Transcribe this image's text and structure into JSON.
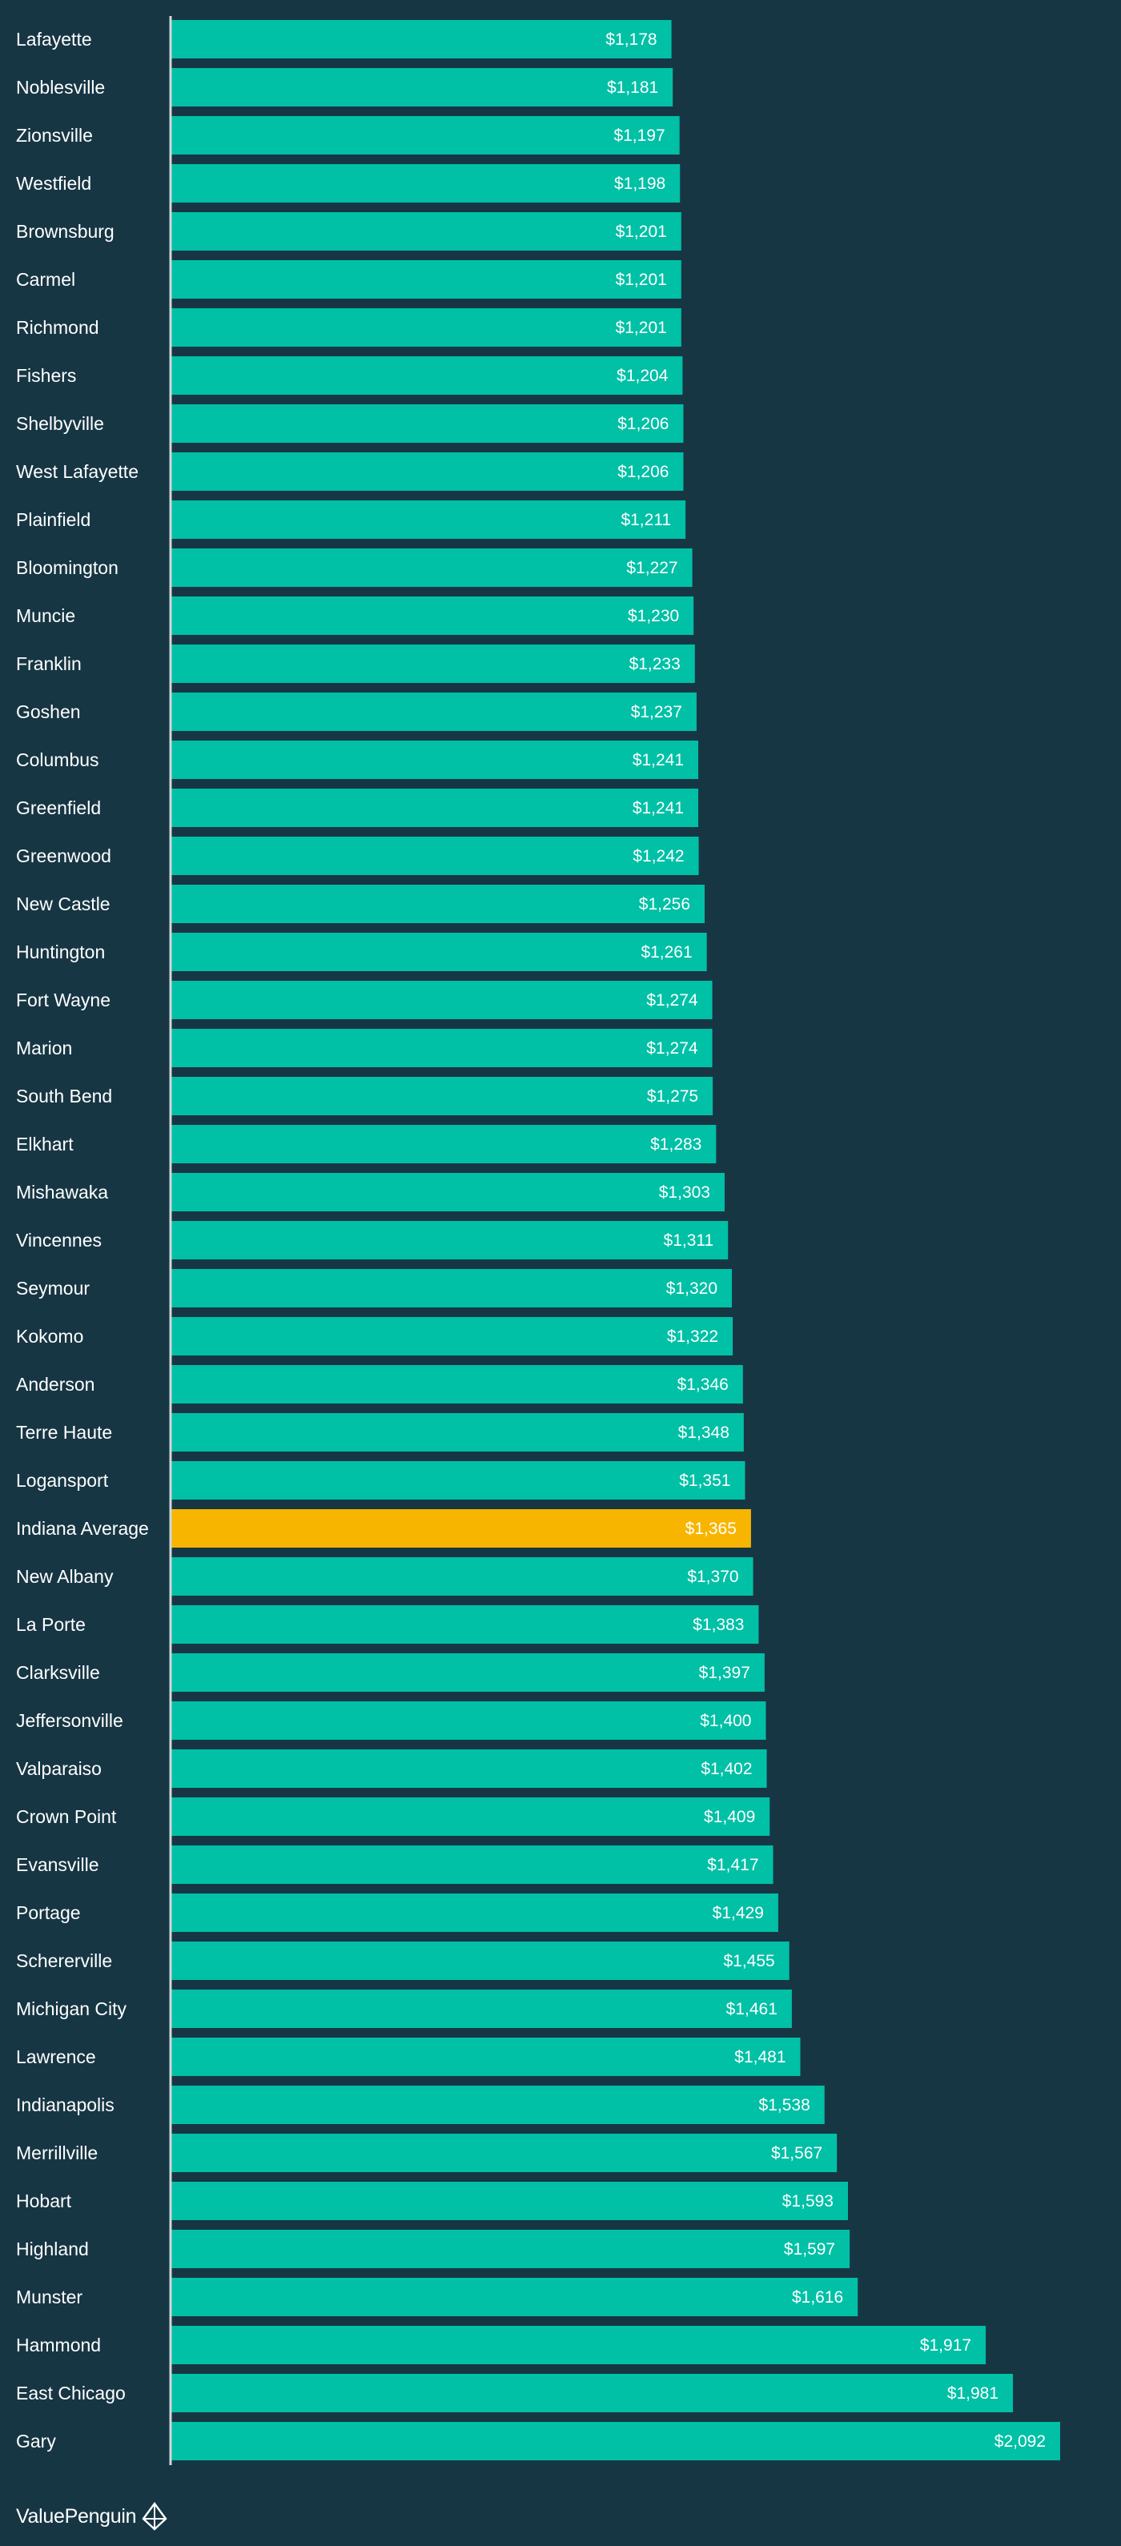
{
  "chart_data": {
    "type": "bar",
    "orientation": "horizontal",
    "categories": [
      "Lafayette",
      "Noblesville",
      "Zionsville",
      "Westfield",
      "Brownsburg",
      "Carmel",
      "Richmond",
      "Fishers",
      "Shelbyville",
      "West Lafayette",
      "Plainfield",
      "Bloomington",
      "Muncie",
      "Franklin",
      "Goshen",
      "Columbus",
      "Greenfield",
      "Greenwood",
      "New Castle",
      "Huntington",
      "Fort Wayne",
      "Marion",
      "South Bend",
      "Elkhart",
      "Mishawaka",
      "Vincennes",
      "Seymour",
      "Kokomo",
      "Anderson",
      "Terre Haute",
      "Logansport",
      "Indiana Average",
      "New Albany",
      "La Porte",
      "Clarksville",
      "Jeffersonville",
      "Valparaiso",
      "Crown Point",
      "Evansville",
      "Portage",
      "Schererville",
      "Michigan City",
      "Lawrence",
      "Indianapolis",
      "Merrillville",
      "Hobart",
      "Highland",
      "Munster",
      "Hammond",
      "East Chicago",
      "Gary"
    ],
    "values": [
      1178,
      1181,
      1197,
      1198,
      1201,
      1201,
      1201,
      1204,
      1206,
      1206,
      1211,
      1227,
      1230,
      1233,
      1237,
      1241,
      1241,
      1242,
      1256,
      1261,
      1274,
      1274,
      1275,
      1283,
      1303,
      1311,
      1320,
      1322,
      1346,
      1348,
      1351,
      1365,
      1370,
      1383,
      1397,
      1400,
      1402,
      1409,
      1417,
      1429,
      1455,
      1461,
      1481,
      1538,
      1567,
      1593,
      1597,
      1616,
      1917,
      1981,
      2092
    ],
    "value_labels": [
      "$1,178",
      "$1,181",
      "$1,197",
      "$1,198",
      "$1,201",
      "$1,201",
      "$1,201",
      "$1,204",
      "$1,206",
      "$1,206",
      "$1,211",
      "$1,227",
      "$1,230",
      "$1,233",
      "$1,237",
      "$1,241",
      "$1,241",
      "$1,242",
      "$1,256",
      "$1,261",
      "$1,274",
      "$1,274",
      "$1,275",
      "$1,283",
      "$1,303",
      "$1,311",
      "$1,320",
      "$1,322",
      "$1,346",
      "$1,348",
      "$1,351",
      "$1,365",
      "$1,370",
      "$1,383",
      "$1,397",
      "$1,400",
      "$1,402",
      "$1,409",
      "$1,417",
      "$1,429",
      "$1,455",
      "$1,461",
      "$1,481",
      "$1,538",
      "$1,567",
      "$1,593",
      "$1,597",
      "$1,616",
      "$1,917",
      "$1,981",
      "$2,092"
    ],
    "highlight_category": "Indiana Average",
    "xlim": [
      0,
      2300
    ],
    "grid": false,
    "legend": "none",
    "title": "",
    "xlabel": "",
    "ylabel": ""
  },
  "colors": {
    "background": "#173644",
    "bar": "#00c0a6",
    "highlight_bar": "#f8b500",
    "text": "#ffffff",
    "axis_line": "#cfd8dc"
  },
  "brand": {
    "name": "ValuePenguin",
    "icon": "valuepenguin-logo-icon"
  }
}
